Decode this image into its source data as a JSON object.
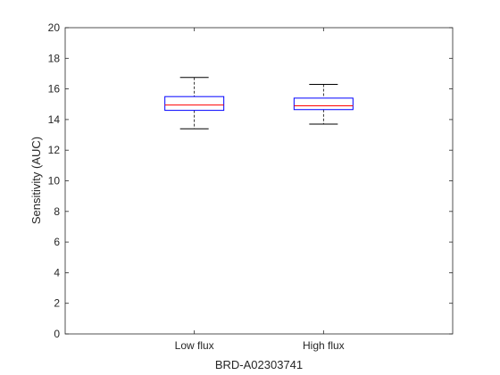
{
  "chart_data": {
    "type": "boxplot",
    "title": "",
    "xlabel": "BRD-A02303741",
    "ylabel": "Sensitivity (AUC)",
    "ylim": [
      0,
      20
    ],
    "yticks": [
      0,
      2,
      4,
      6,
      8,
      10,
      12,
      14,
      16,
      18,
      20
    ],
    "grid": false,
    "categories": [
      "Low flux",
      "High flux"
    ],
    "boxes": [
      {
        "category": "Low flux",
        "whisker_low": 13.4,
        "q1": 14.6,
        "median": 14.95,
        "q3": 15.5,
        "whisker_high": 16.75
      },
      {
        "category": "High flux",
        "whisker_low": 13.7,
        "q1": 14.65,
        "median": 14.9,
        "q3": 15.4,
        "whisker_high": 16.3
      }
    ],
    "colors": {
      "box": "#0000ff",
      "median": "#ff0000",
      "whisker": "#000000",
      "axis": "#262626"
    }
  }
}
